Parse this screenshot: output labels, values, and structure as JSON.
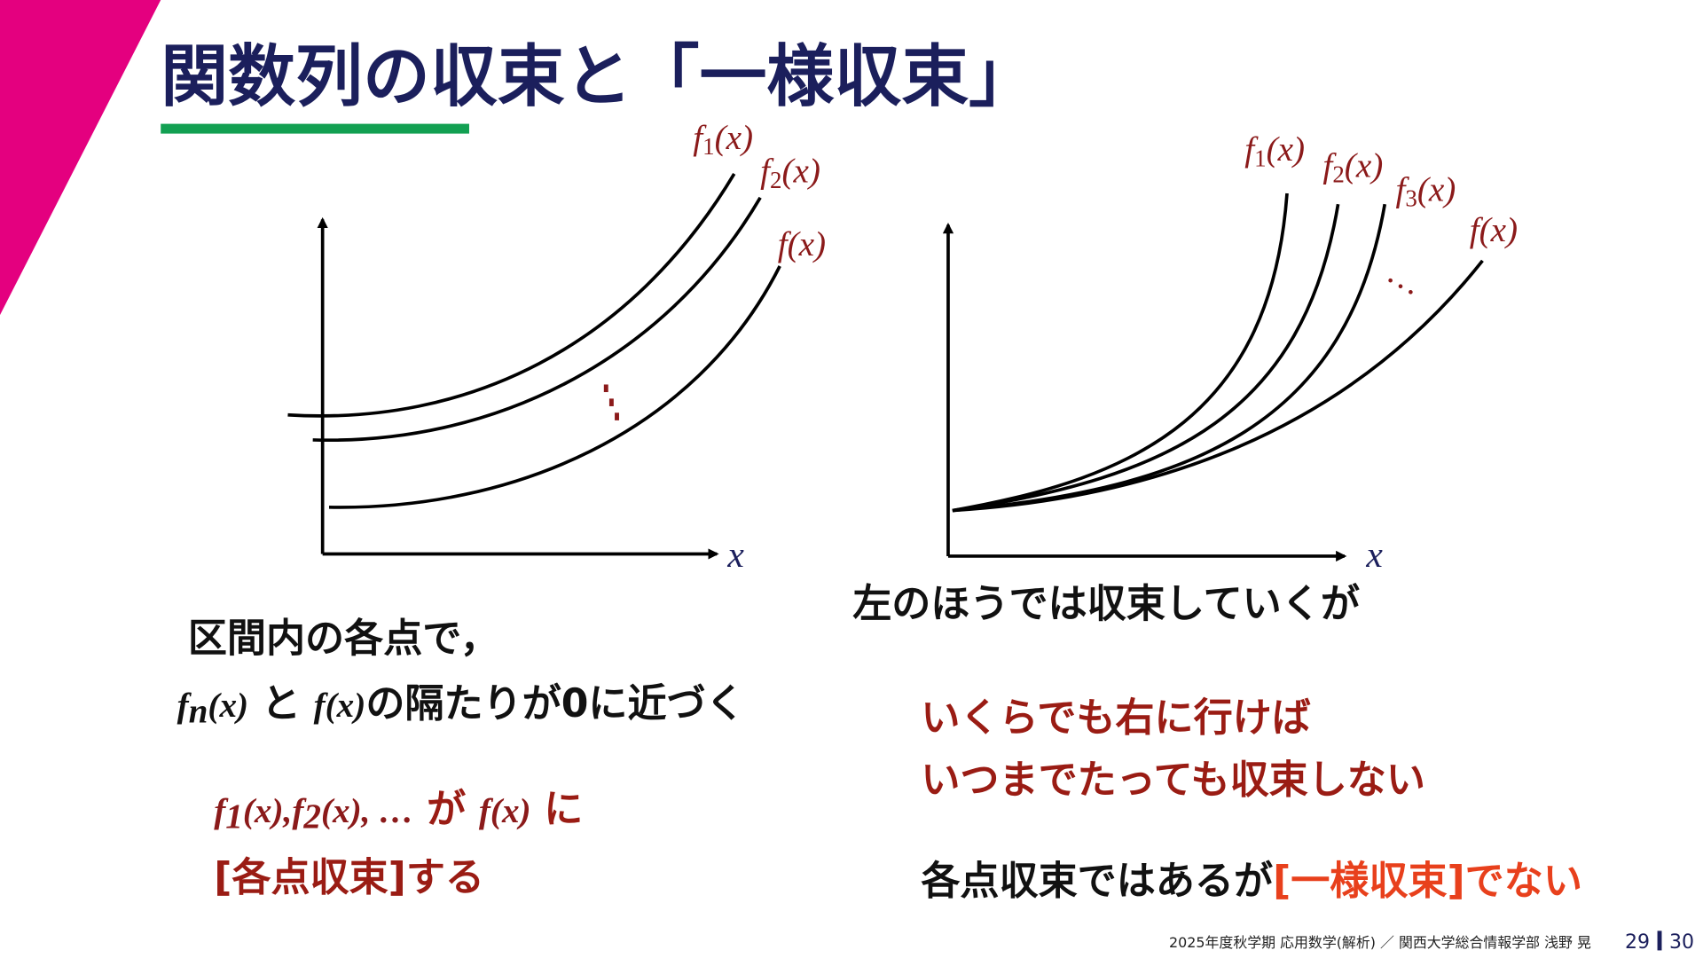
{
  "header": {
    "title": "関数列の収束と「一様収束」"
  },
  "left_graph": {
    "labels": [
      [
        "f",
        "1",
        "(x)"
      ],
      [
        "f",
        "2",
        "(x)"
      ],
      [
        "f",
        "(x)"
      ]
    ],
    "axis_label": "x"
  },
  "right_graph": {
    "labels": [
      [
        "f",
        "1",
        "(x)"
      ],
      [
        "f",
        "2",
        "(x)"
      ],
      [
        "f",
        "3",
        "(x)"
      ],
      [
        "f",
        "(x)"
      ]
    ],
    "ellipsis": "…",
    "axis_label": "x",
    "caption": "左のほうでは収束していくが"
  },
  "left_notes": {
    "line1": "区間内の各点で，",
    "line2": [
      "f",
      "n",
      "(x)",
      "と",
      "f",
      "(x)",
      "の隔たりが0に近づく"
    ],
    "line3": [
      "f",
      "1",
      "(x),",
      "f",
      "2",
      "(x), …",
      "が",
      "f",
      "(x)",
      "に"
    ],
    "line4": "[各点収束]する"
  },
  "right_notes": {
    "line1": "いくらでも右に行けば",
    "line2": "いつまでたっても収束しない",
    "line3": [
      "各点収束ではあるが",
      "[一様収束]でない"
    ]
  },
  "footer": {
    "course": "2025年度秋学期 応用数学(解析) ／ 関西大学総合情報学部 浅野 晃",
    "page": "29",
    "total": "30"
  }
}
